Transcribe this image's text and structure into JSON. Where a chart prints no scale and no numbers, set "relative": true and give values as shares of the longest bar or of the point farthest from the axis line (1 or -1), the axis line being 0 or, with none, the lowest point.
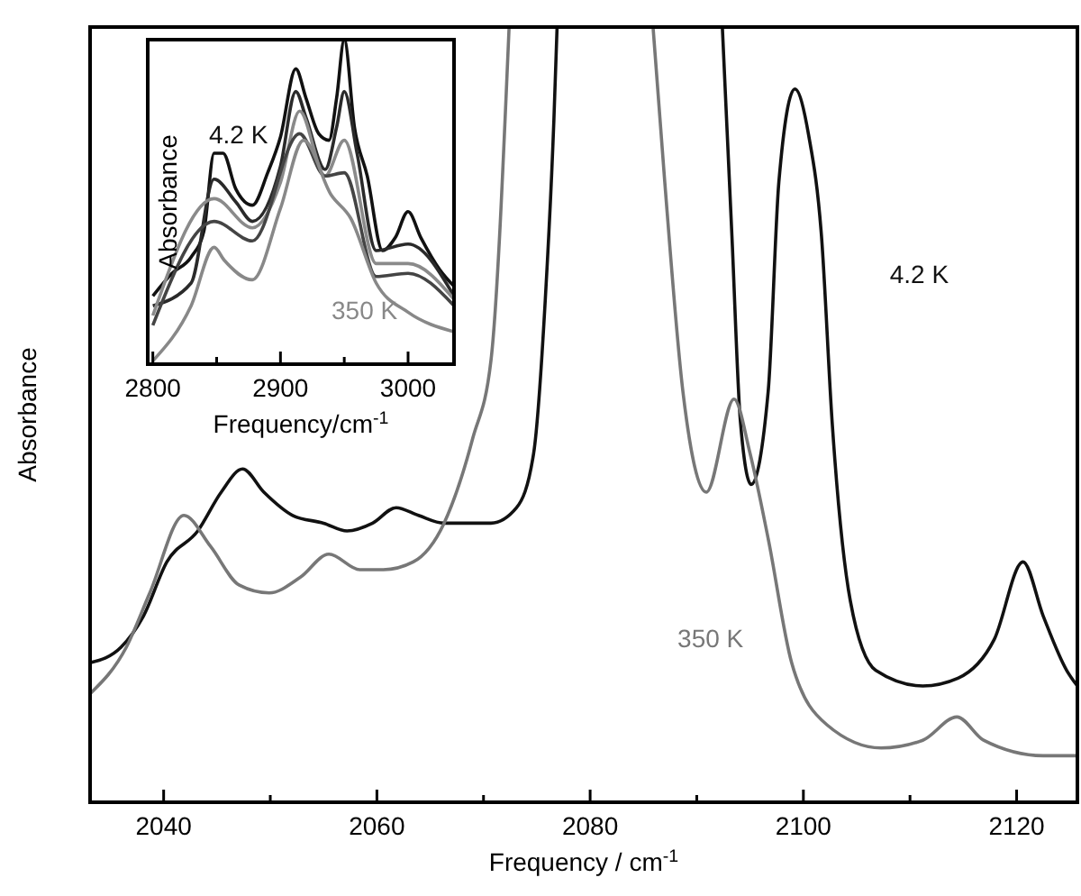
{
  "chart_data": [
    {
      "type": "line",
      "relative": true,
      "xlabel": "Frequency / cm$^{-1}$",
      "ylabel": "Absorbance",
      "xlim": [
        2033.1,
        2125.7
      ],
      "xticks": [
        2040,
        {
          "value": 2050,
          "label": null
        },
        2060,
        {
          "value": 2070,
          "label": null
        },
        2080,
        {
          "value": 2090,
          "label": null
        },
        2100,
        {
          "value": 2110,
          "label": null
        },
        2120
      ],
      "series": [
        {
          "name": "4.2 K",
          "color": "#111111",
          "x": [
            2033.1,
            2036.0,
            2038.1,
            2040.3,
            2043.2,
            2045.4,
            2047.4,
            2049.4,
            2052.1,
            2055.0,
            2057.2,
            2059.6,
            2061.8,
            2063.9,
            2066.3,
            2070.7,
            2073.1,
            2074.7,
            2075.8,
            2076.6,
            2076.9,
            2085,
            2092.4,
            2093.3,
            2094.1,
            2095.1,
            2096.7,
            2097.7,
            2099.2,
            2100.5,
            2101.7,
            2102.7,
            2104.4,
            2106.8,
            2111.2,
            2114.5,
            2117.9,
            2120.6,
            2122.5,
            2124.7,
            2125.7
          ],
          "values": [
            0.18,
            0.2,
            0.24,
            0.31,
            0.35,
            0.4,
            0.43,
            0.4,
            0.37,
            0.36,
            0.35,
            0.36,
            0.38,
            0.37,
            0.36,
            0.36,
            0.38,
            0.45,
            0.65,
            0.88,
            1,
            null,
            1,
            0.73,
            0.49,
            0.41,
            0.53,
            0.8,
            0.92,
            0.86,
            0.73,
            0.49,
            0.26,
            0.17,
            0.15,
            0.16,
            0.21,
            0.31,
            0.24,
            0.17,
            0.15
          ]
        },
        {
          "name": "350 K",
          "color": "#777777",
          "x": [
            2033.1,
            2036.5,
            2038.7,
            2041.9,
            2044.4,
            2047.1,
            2049.9,
            2052.8,
            2055.5,
            2058.4,
            2060.6,
            2063.4,
            2066.3,
            2069.0,
            2070.7,
            2072.4,
            2080,
            2085.9,
            2087.0,
            2088.7,
            2090.9,
            2093.5,
            2095.0,
            2096.7,
            2098.9,
            2102.2,
            2107.3,
            2111.2,
            2114.4,
            2116.9,
            2122.5,
            2125.7
          ],
          "values": [
            0.14,
            0.2,
            0.27,
            0.37,
            0.33,
            0.28,
            0.27,
            0.29,
            0.32,
            0.3,
            0.3,
            0.31,
            0.36,
            0.47,
            0.57,
            1,
            null,
            1,
            0.8,
            0.53,
            0.4,
            0.52,
            0.45,
            0.34,
            0.18,
            0.1,
            0.07,
            0.08,
            0.11,
            0.08,
            0.06,
            0.06
          ]
        }
      ]
    },
    {
      "type": "line",
      "relative": true,
      "xlabel": "Frequency/cm$^{-1}$",
      "ylabel": "Absorbance",
      "xlim": [
        2796,
        3036
      ],
      "xticks": [
        2800,
        {
          "value": 2850,
          "label": null
        },
        2900,
        {
          "value": 2950,
          "label": null
        },
        3000
      ],
      "series": [
        {
          "name": "4.2 K",
          "color": "#111111",
          "x": [
            2800,
            2815,
            2830,
            2840,
            2848,
            2855,
            2865,
            2878,
            2890,
            2900,
            2912,
            2920,
            2930,
            2938,
            2944,
            2950,
            2958,
            2968,
            2980,
            2990,
            3000,
            3010,
            3025,
            3036
          ],
          "values": [
            0.21,
            0.28,
            0.33,
            0.41,
            0.65,
            0.65,
            0.54,
            0.49,
            0.59,
            0.7,
            0.91,
            0.82,
            0.71,
            0.69,
            0.82,
            1,
            0.73,
            0.58,
            0.35,
            0.39,
            0.47,
            0.39,
            0.29,
            0.24
          ]
        },
        {
          "color": "#2a2a2a",
          "x": [
            2800,
            2830,
            2848,
            2865,
            2878,
            2900,
            2912,
            2920,
            2935,
            2944,
            2950,
            2960,
            2975,
            3000,
            3036
          ],
          "values": [
            0.18,
            0.25,
            0.57,
            0.5,
            0.44,
            0.61,
            0.84,
            0.76,
            0.6,
            0.73,
            0.84,
            0.65,
            0.35,
            0.37,
            0.21
          ]
        },
        {
          "color": "#8a8a8a",
          "x": [
            2800,
            2848,
            2878,
            2900,
            2915,
            2935,
            2950,
            2975,
            3000,
            3036
          ],
          "values": [
            0.15,
            0.51,
            0.42,
            0.56,
            0.78,
            0.58,
            0.69,
            0.31,
            0.31,
            0.2
          ]
        },
        {
          "color": "#444444",
          "x": [
            2800,
            2848,
            2878,
            2915,
            2935,
            2950,
            2975,
            3000,
            3036
          ],
          "values": [
            0.12,
            0.44,
            0.38,
            0.71,
            0.58,
            0.59,
            0.27,
            0.28,
            0.18
          ]
        },
        {
          "name": "350 K",
          "color": "#888888",
          "x": [
            2800,
            2830,
            2848,
            2856,
            2878,
            2900,
            2918,
            2940,
            2955,
            2975,
            3000,
            3036
          ],
          "values": [
            0.01,
            0.18,
            0.36,
            0.32,
            0.26,
            0.48,
            0.69,
            0.52,
            0.45,
            0.25,
            0.16,
            0.1
          ]
        }
      ]
    }
  ]
}
